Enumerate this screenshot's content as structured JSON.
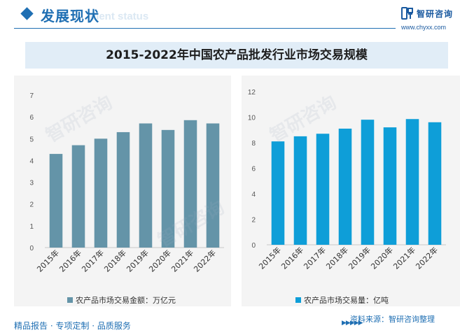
{
  "header": {
    "title": "发展现状",
    "subtitle": "ment status"
  },
  "logo": {
    "name": "智研咨询",
    "url": "www.chyxx.com"
  },
  "figure_title": "2015-2022年中国农产品批发行业市场交易规模",
  "colors": {
    "accent": "#1f6fb3",
    "left_series": "#6494a8",
    "right_series": "#0e9ed8",
    "panel_bg": "#f4f4f4",
    "title_band": "#e1edf7"
  },
  "chart_data": [
    {
      "type": "bar",
      "categories": [
        "2015年",
        "2016年",
        "2017年",
        "2018年",
        "2019年",
        "2020年",
        "2021年",
        "2022年"
      ],
      "series": [
        {
          "name": "农产品市场交易金额：万亿元",
          "values": [
            4.3,
            4.7,
            5.0,
            5.3,
            5.7,
            5.4,
            5.85,
            5.7
          ]
        }
      ],
      "ylim": [
        0,
        7
      ],
      "yticks": [
        0,
        1,
        2,
        3,
        4,
        5,
        6,
        7
      ],
      "legend": "bottom",
      "grid": false
    },
    {
      "type": "bar",
      "categories": [
        "2015年",
        "2016年",
        "2017年",
        "2018年",
        "2019年",
        "2020年",
        "2021年",
        "2022年"
      ],
      "series": [
        {
          "name": "农产品市场交易量：亿吨",
          "values": [
            8.1,
            8.5,
            8.7,
            9.1,
            9.8,
            9.2,
            9.85,
            9.6
          ]
        }
      ],
      "ylim": [
        0,
        12
      ],
      "yticks": [
        0,
        2,
        4,
        6,
        8,
        10,
        12
      ],
      "legend": "bottom",
      "grid": false
    }
  ],
  "footer": {
    "left": "精品报告 · 专项定制 · 品质服务",
    "arrows": "▶▶▶▶▶",
    "source": "资料来源：智研咨询整理"
  }
}
